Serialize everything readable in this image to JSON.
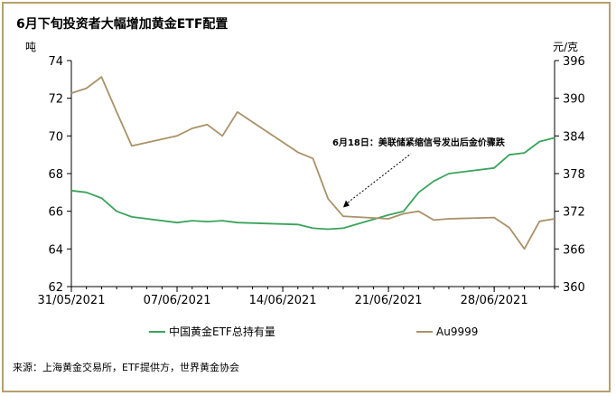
{
  "chart_data": {
    "type": "line",
    "title": "6月下旬投资者大幅增加黄金ETF配置",
    "y_left_unit": "吨",
    "y_right_unit": "元/克",
    "y_left_range": [
      62,
      74
    ],
    "y_left_ticks": [
      "62",
      "64",
      "66",
      "68",
      "70",
      "72",
      "74"
    ],
    "y_right_range": [
      360,
      396
    ],
    "y_right_ticks": [
      "360",
      "366",
      "372",
      "378",
      "384",
      "390",
      "396"
    ],
    "x_range": [
      "2021-05-31",
      "2021-07-02"
    ],
    "x_ticks": [
      {
        "date": "2021-05-31",
        "label": "31/05/2021"
      },
      {
        "date": "2021-06-07",
        "label": "07/06/2021"
      },
      {
        "date": "2021-06-14",
        "label": "14/06/2021"
      },
      {
        "date": "2021-06-21",
        "label": "21/06/2021"
      },
      {
        "date": "2021-06-28",
        "label": "28/06/2021"
      }
    ],
    "grid": false,
    "legend_position": "bottom",
    "series": [
      {
        "name": "中国黄金ETF总持有量",
        "axis": "left",
        "color": "#3aa35b",
        "x": [
          "2021-05-31",
          "2021-06-01",
          "2021-06-02",
          "2021-06-03",
          "2021-06-04",
          "2021-06-07",
          "2021-06-08",
          "2021-06-09",
          "2021-06-10",
          "2021-06-11",
          "2021-06-15",
          "2021-06-16",
          "2021-06-17",
          "2021-06-18",
          "2021-06-21",
          "2021-06-22",
          "2021-06-23",
          "2021-06-24",
          "2021-06-25",
          "2021-06-28",
          "2021-06-29",
          "2021-06-30",
          "2021-07-01",
          "2021-07-02"
        ],
        "values": [
          67.1,
          67.0,
          66.7,
          66.0,
          65.7,
          65.4,
          65.5,
          65.45,
          65.5,
          65.4,
          65.3,
          65.1,
          65.05,
          65.1,
          65.8,
          66.0,
          67.0,
          67.6,
          68.0,
          68.3,
          69.0,
          69.1,
          69.7,
          69.9
        ]
      },
      {
        "name": "Au9999",
        "axis": "right",
        "color": "#a99268",
        "x": [
          "2021-05-31",
          "2021-06-01",
          "2021-06-02",
          "2021-06-03",
          "2021-06-04",
          "2021-06-07",
          "2021-06-08",
          "2021-06-09",
          "2021-06-10",
          "2021-06-11",
          "2021-06-15",
          "2021-06-16",
          "2021-06-17",
          "2021-06-18",
          "2021-06-21",
          "2021-06-22",
          "2021-06-23",
          "2021-06-24",
          "2021-06-25",
          "2021-06-28",
          "2021-06-29",
          "2021-06-30",
          "2021-07-01",
          "2021-07-02"
        ],
        "values": [
          390.8,
          391.6,
          393.4,
          387.8,
          382.4,
          384.0,
          385.2,
          385.8,
          384.0,
          387.8,
          381.4,
          380.4,
          374.0,
          371.2,
          370.8,
          371.6,
          372.0,
          370.6,
          370.8,
          371.0,
          369.4,
          366.0,
          370.4,
          370.8
        ]
      }
    ],
    "annotation": {
      "text": "6月18日：美联储紧缩信号发出后金价骤跌",
      "date": "2021-06-18",
      "value": 66.2
    }
  },
  "source": "来源：上海黄金交易所，ETF提供方，世界黄金协会"
}
